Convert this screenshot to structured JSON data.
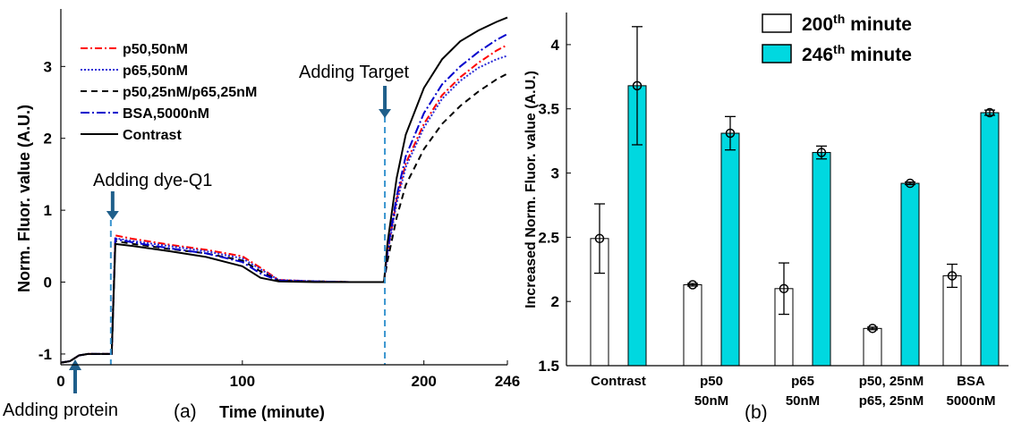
{
  "chart_data": [
    {
      "type": "line",
      "panel_label": "(a)",
      "xlabel": "Time (minute)",
      "ylabel": "Norm. Fluor. value (A.U.)",
      "xlim": [
        0,
        246
      ],
      "ylim": [
        -1.15,
        3.8
      ],
      "xticks": [
        "0",
        "100",
        "200",
        "246"
      ],
      "xtick_values": [
        0,
        100,
        200,
        246
      ],
      "yticks": [
        "-1",
        "0",
        "1",
        "2",
        "3"
      ],
      "ytick_values": [
        -1,
        0,
        1,
        2,
        3
      ],
      "legend_position": "top-left",
      "series": [
        {
          "name": "p50,50nM",
          "color": "#ff0000",
          "dash": "8,3,2,3",
          "x": [
            0,
            5,
            10,
            15,
            28,
            30,
            40,
            60,
            80,
            100,
            110,
            120,
            140,
            160,
            178,
            180,
            185,
            190,
            200,
            210,
            220,
            230,
            240,
            246
          ],
          "y": [
            -1.12,
            -1.1,
            -1.02,
            -1.0,
            -1.0,
            0.65,
            0.6,
            0.52,
            0.45,
            0.36,
            0.2,
            0.03,
            0.01,
            0.0,
            0.0,
            0.42,
            1.15,
            1.65,
            2.2,
            2.6,
            2.85,
            3.05,
            3.22,
            3.3
          ]
        },
        {
          "name": "p65,50nM",
          "color": "#2b2bd6",
          "dash": "2,2",
          "x": [
            0,
            5,
            10,
            15,
            28,
            30,
            40,
            60,
            80,
            100,
            110,
            120,
            140,
            160,
            178,
            180,
            185,
            190,
            200,
            210,
            220,
            230,
            240,
            246
          ],
          "y": [
            -1.12,
            -1.1,
            -1.02,
            -1.0,
            -1.0,
            0.61,
            0.57,
            0.5,
            0.43,
            0.33,
            0.18,
            0.03,
            0.01,
            0.0,
            0.0,
            0.4,
            1.1,
            1.6,
            2.15,
            2.55,
            2.8,
            2.98,
            3.1,
            3.15
          ]
        },
        {
          "name": "p50,25nM/p65,25nM",
          "color": "#000000",
          "dash": "7,5",
          "x": [
            0,
            5,
            10,
            15,
            28,
            30,
            40,
            60,
            80,
            100,
            110,
            120,
            140,
            160,
            178,
            180,
            185,
            190,
            200,
            210,
            220,
            230,
            240,
            246
          ],
          "y": [
            -1.12,
            -1.1,
            -1.02,
            -1.0,
            -1.0,
            0.57,
            0.53,
            0.46,
            0.4,
            0.3,
            0.15,
            0.02,
            0.01,
            0.0,
            0.0,
            0.3,
            0.9,
            1.35,
            1.85,
            2.2,
            2.45,
            2.65,
            2.82,
            2.9
          ]
        },
        {
          "name": "BSA,5000nM",
          "color": "#0000cc",
          "dash": "10,3,2,3",
          "x": [
            0,
            5,
            10,
            15,
            28,
            30,
            40,
            60,
            80,
            100,
            110,
            120,
            140,
            160,
            178,
            180,
            185,
            190,
            200,
            210,
            220,
            230,
            240,
            246
          ],
          "y": [
            -1.12,
            -1.1,
            -1.02,
            -1.0,
            -1.0,
            0.6,
            0.55,
            0.47,
            0.4,
            0.28,
            0.12,
            0.02,
            0.01,
            0.0,
            0.0,
            0.45,
            1.2,
            1.75,
            2.35,
            2.75,
            3.0,
            3.2,
            3.37,
            3.45
          ]
        },
        {
          "name": "Contrast",
          "color": "#000000",
          "dash": "",
          "x": [
            0,
            5,
            10,
            15,
            28,
            30,
            40,
            60,
            80,
            100,
            110,
            120,
            140,
            160,
            178,
            180,
            185,
            190,
            200,
            210,
            220,
            230,
            240,
            246
          ],
          "y": [
            -1.12,
            -1.1,
            -1.02,
            -1.0,
            -1.0,
            0.53,
            0.5,
            0.43,
            0.35,
            0.22,
            0.06,
            0.01,
            0.0,
            0.0,
            0.0,
            0.55,
            1.45,
            2.05,
            2.7,
            3.1,
            3.35,
            3.5,
            3.62,
            3.68
          ]
        }
      ],
      "annotations": [
        {
          "text": "Adding protein",
          "x": 10
        },
        {
          "text": "Adding dye-Q1",
          "x": 30
        },
        {
          "text": "Adding Target",
          "x": 178
        }
      ]
    },
    {
      "type": "bar",
      "panel_label": "(b)",
      "ylabel": "Increased Norm. Fluor. value (A.U.)",
      "ylim": [
        1.5,
        4.25
      ],
      "yticks": [
        "1.5",
        "2",
        "2.5",
        "3",
        "3.5",
        "4"
      ],
      "ytick_values": [
        1.5,
        2,
        2.5,
        3,
        3.5,
        4
      ],
      "categories": [
        {
          "line1": "Contrast",
          "line2": ""
        },
        {
          "line1": "p50",
          "line2": "50nM"
        },
        {
          "line1": "p65",
          "line2": "50nM"
        },
        {
          "line1": "p50, 25nM",
          "line2": "p65, 25nM"
        },
        {
          "line1": "BSA",
          "line2": "5000nM"
        }
      ],
      "legend_position": "top",
      "series": [
        {
          "name_main": "200",
          "name_sup": "th",
          "name_rest": " minute",
          "color": "#ffffff",
          "values": [
            2.49,
            2.13,
            2.1,
            1.79,
            2.2
          ],
          "errors": [
            0.27,
            0.01,
            0.2,
            0.01,
            0.09
          ]
        },
        {
          "name_main": "246",
          "name_sup": "th",
          "name_rest": " minute",
          "color": "#00d8e0",
          "values": [
            3.68,
            3.31,
            3.16,
            2.92,
            3.47
          ],
          "errors": [
            0.46,
            0.13,
            0.05,
            0.01,
            0.02
          ]
        }
      ]
    }
  ]
}
